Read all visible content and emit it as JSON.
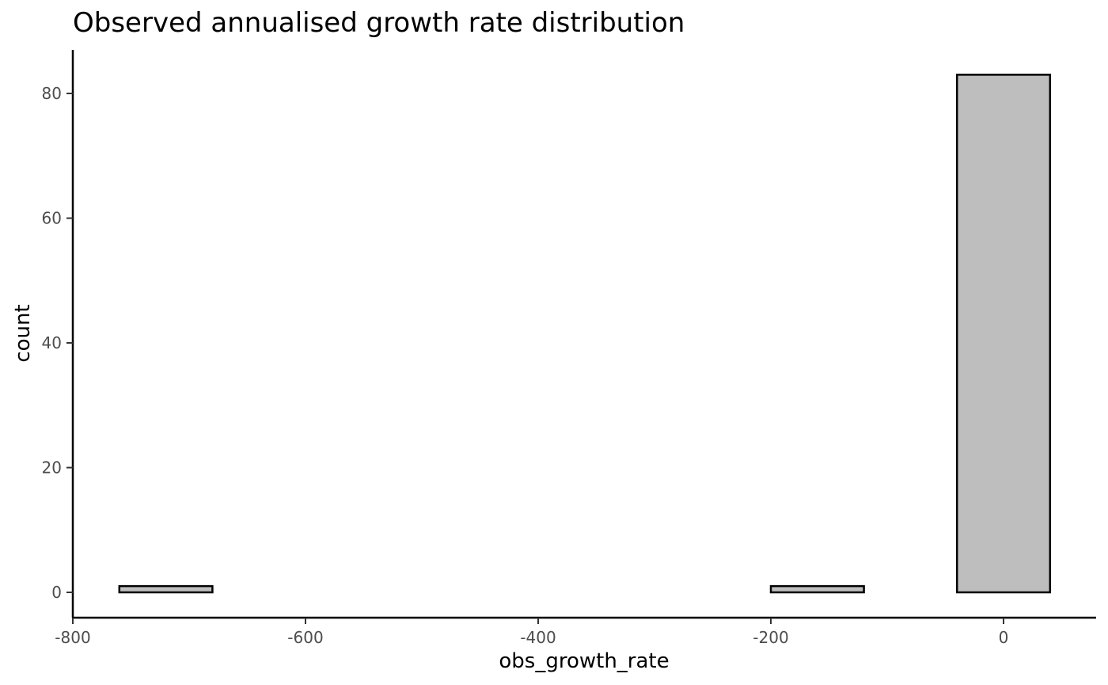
{
  "chart_data": {
    "type": "bar",
    "title": "Observed annualised growth rate distribution",
    "xlabel": "obs_growth_rate",
    "ylabel": "count",
    "xlim": [
      -800,
      40
    ],
    "ylim": [
      0,
      83
    ],
    "x_ticks": [
      -800,
      -600,
      -400,
      -200,
      0
    ],
    "y_ticks": [
      0,
      20,
      40,
      60,
      80
    ],
    "grid": false,
    "bins": [
      {
        "x0": -760,
        "x1": -680,
        "count": 1
      },
      {
        "x0": -680,
        "x1": -600,
        "count": 0
      },
      {
        "x0": -600,
        "x1": -520,
        "count": 0
      },
      {
        "x0": -520,
        "x1": -440,
        "count": 0
      },
      {
        "x0": -440,
        "x1": -360,
        "count": 0
      },
      {
        "x0": -360,
        "x1": -280,
        "count": 0
      },
      {
        "x0": -280,
        "x1": -200,
        "count": 0
      },
      {
        "x0": -200,
        "x1": -120,
        "count": 1
      },
      {
        "x0": -120,
        "x1": -40,
        "count": 0
      },
      {
        "x0": -40,
        "x1": 40,
        "count": 83
      }
    ],
    "colors": {
      "fill": "#bebebe",
      "stroke": "#000000",
      "tick_text": "#4d4d4d"
    }
  }
}
